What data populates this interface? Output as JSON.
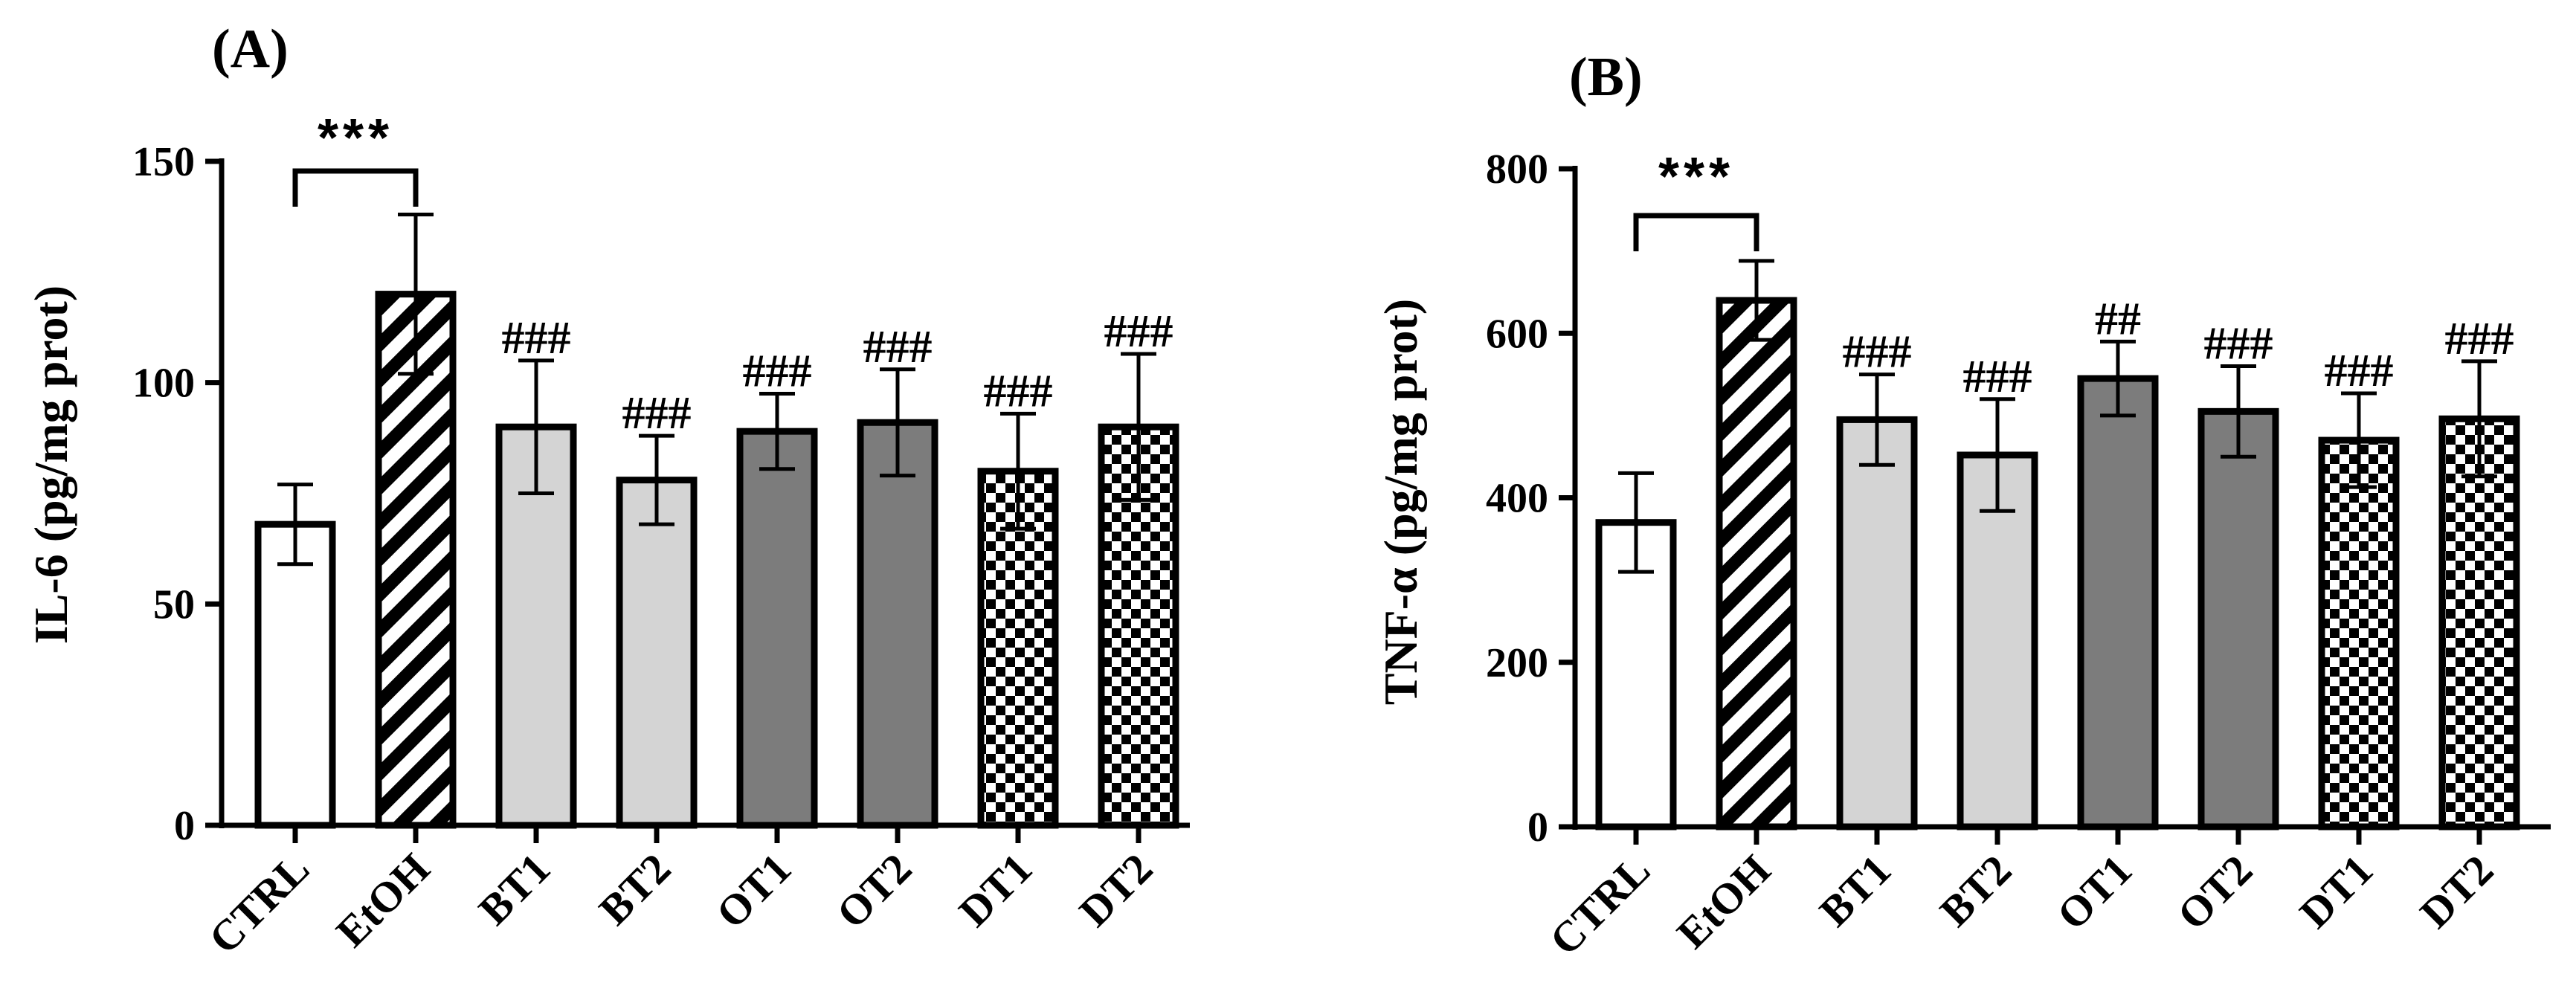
{
  "chart_data": [
    {
      "type": "bar",
      "panel_label": "(A)",
      "ylabel": "IL-6 (pg/mg prot)",
      "xlabel": "",
      "ylim": [
        0,
        150
      ],
      "yticks": [
        0,
        50,
        100,
        150
      ],
      "categories": [
        "CTRL",
        "EtOH",
        "BT1",
        "BT2",
        "OT1",
        "OT2",
        "DT1",
        "DT2"
      ],
      "values": [
        68,
        120,
        90,
        78,
        89,
        91,
        80,
        90
      ],
      "errors": [
        9,
        18,
        15,
        10,
        8.5,
        12,
        13,
        16.5
      ],
      "fills": [
        "white",
        "stripes",
        "light-gray",
        "light-gray",
        "dark-gray",
        "dark-gray",
        "checker",
        "checker"
      ],
      "annotations": [
        "",
        "",
        "###",
        "###",
        "###",
        "###",
        "###",
        "###"
      ],
      "significance": {
        "from": "CTRL",
        "to": "EtOH",
        "label": "***"
      }
    },
    {
      "type": "bar",
      "panel_label": "(B)",
      "ylabel": "TNF-α (pg/mg prot)",
      "xlabel": "",
      "ylim": [
        0,
        800
      ],
      "yticks": [
        0,
        200,
        400,
        600,
        800
      ],
      "categories": [
        "CTRL",
        "EtOH",
        "BT1",
        "BT2",
        "OT1",
        "OT2",
        "DT1",
        "DT2"
      ],
      "values": [
        370,
        640,
        495,
        452,
        545,
        505,
        470,
        496
      ],
      "errors": [
        60,
        48,
        55,
        68,
        45,
        55,
        57,
        70
      ],
      "fills": [
        "white",
        "stripes",
        "light-gray",
        "light-gray",
        "dark-gray",
        "dark-gray",
        "checker",
        "checker"
      ],
      "annotations": [
        "",
        "",
        "###",
        "###",
        "##",
        "###",
        "###",
        "###"
      ],
      "significance": {
        "from": "CTRL",
        "to": "EtOH",
        "label": "***"
      }
    }
  ],
  "colors": {
    "light_gray": "#d4d4d4",
    "dark_gray": "#7c7c7c",
    "black": "#000000",
    "white": "#ffffff"
  }
}
